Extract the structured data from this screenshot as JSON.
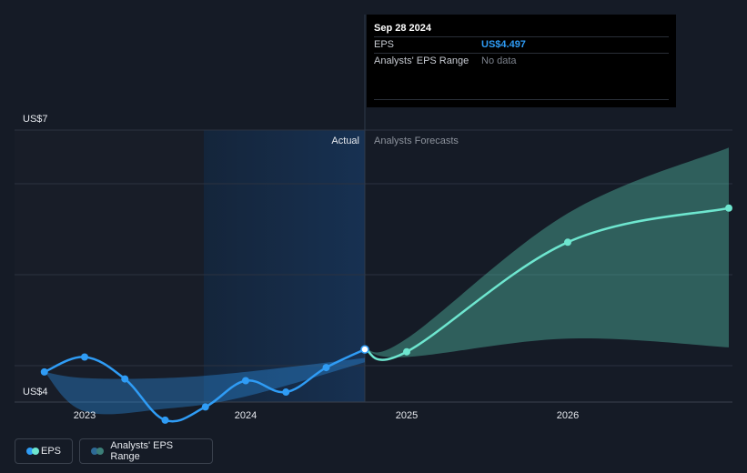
{
  "chart_data": {
    "type": "line",
    "xlabel": "",
    "ylabel": "",
    "y_axis": {
      "min": 4,
      "max": 7,
      "labels": [
        "US$7",
        "US$4"
      ]
    },
    "x_axis": {
      "ticks": [
        2023,
        2024,
        2025,
        2026
      ]
    },
    "section_labels": {
      "actual": "Actual",
      "forecast": "Analysts Forecasts"
    },
    "series": [
      {
        "name": "EPS",
        "kind": "actual",
        "color": "#2f9cf5",
        "points": [
          {
            "x": 2022.75,
            "y": 4.24
          },
          {
            "x": 2023.0,
            "y": 4.41
          },
          {
            "x": 2023.25,
            "y": 4.16
          },
          {
            "x": 2023.5,
            "y": 3.69
          },
          {
            "x": 2023.75,
            "y": 3.84
          },
          {
            "x": 2024.0,
            "y": 4.14
          },
          {
            "x": 2024.25,
            "y": 4.01
          },
          {
            "x": 2024.5,
            "y": 4.29
          },
          {
            "x": 2024.74,
            "y": 4.497
          }
        ]
      },
      {
        "name": "EPS",
        "kind": "forecast",
        "color": "#6ee6cf",
        "points": [
          {
            "x": 2024.74,
            "y": 4.497
          },
          {
            "x": 2025.0,
            "y": 4.47
          },
          {
            "x": 2026.0,
            "y": 5.72
          },
          {
            "x": 2027.0,
            "y": 6.11
          }
        ]
      }
    ],
    "ranges": [
      {
        "name": "Analysts' EPS Range",
        "kind": "actual",
        "color": "#2f9cf5",
        "points": [
          {
            "x": 2022.75,
            "high": 4.24,
            "low": 4.24
          },
          {
            "x": 2023.0,
            "high": 4.17,
            "low": 3.79
          },
          {
            "x": 2023.5,
            "high": 4.17,
            "low": 3.82
          },
          {
            "x": 2024.0,
            "high": 4.24,
            "low": 3.96
          },
          {
            "x": 2024.74,
            "high": 4.4,
            "low": 4.35
          }
        ]
      },
      {
        "name": "Analysts' EPS Range",
        "kind": "forecast",
        "color": "#4fb3a0",
        "points": [
          {
            "x": 2024.74,
            "high": 4.5,
            "low": 4.5
          },
          {
            "x": 2025.0,
            "high": 4.62,
            "low": 4.41
          },
          {
            "x": 2026.0,
            "high": 6.05,
            "low": 4.62
          },
          {
            "x": 2027.0,
            "high": 6.8,
            "low": 4.52
          }
        ]
      }
    ],
    "tooltip": {
      "date": "Sep 28 2024",
      "rows": [
        {
          "label": "EPS",
          "value": "US$4.497"
        },
        {
          "label": "Analysts' EPS Range",
          "value": "No data"
        }
      ]
    },
    "legend": [
      {
        "label": "EPS",
        "colors": [
          "#2f9cf5",
          "#6ee6cf"
        ]
      },
      {
        "label": "Analysts' EPS Range",
        "colors": [
          "#2e6a96",
          "#3c7f78"
        ]
      }
    ]
  }
}
